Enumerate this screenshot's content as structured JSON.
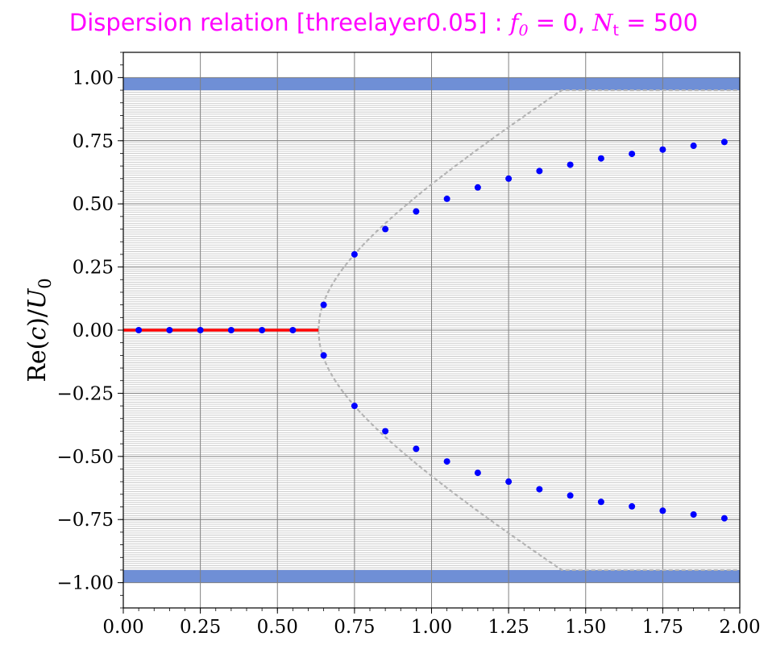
{
  "title": {
    "prefix": "Dispersion relation [threelayer0.05] : ",
    "f0_symbol": "f",
    "f0_sub": "0",
    "f0_eq": " = 0, ",
    "nt_symbol": "N",
    "nt_sub": "t",
    "nt_eq": " = 500"
  },
  "colors": {
    "title": "#ff00ff",
    "continuum_lines": "#c8c8c8",
    "boundary_bands": "#6f8fd6",
    "unstable_branch": "#ff0000",
    "sample_points": "#0000ff",
    "analytic_curve": "#b4b4b4"
  },
  "chart_data": {
    "type": "scatter",
    "ylabel": {
      "prefix": "Re(",
      "var": "c",
      "mid": ")/",
      "u": "U",
      "sub": "0"
    },
    "xlabel": "",
    "xlim": [
      0.0,
      2.0
    ],
    "ylim": [
      -1.1,
      1.1
    ],
    "grid": true,
    "x_ticks": [
      "0.00",
      "0.25",
      "0.50",
      "0.75",
      "1.00",
      "1.25",
      "1.50",
      "1.75",
      "2.00"
    ],
    "y_ticks": [
      "1.00",
      "0.75",
      "0.50",
      "0.25",
      "0.00",
      "−0.25",
      "−0.50",
      "−0.75",
      "−1.00"
    ],
    "continuum_band": [
      -0.95,
      0.95
    ],
    "boundary_bands": [
      [
        0.95,
        1.0
      ],
      [
        -1.0,
        -0.95
      ]
    ],
    "red_branch": {
      "x": [
        0.0,
        0.633
      ],
      "y": 0.0
    },
    "analytic_cutoff_k": 0.633,
    "points_upper": {
      "x": [
        0.65,
        0.75,
        0.85,
        0.95,
        1.05,
        1.15,
        1.25,
        1.35,
        1.45,
        1.55,
        1.65,
        1.75,
        1.85,
        1.95
      ],
      "y": [
        0.1,
        0.3,
        0.4,
        0.47,
        0.52,
        0.565,
        0.6,
        0.63,
        0.655,
        0.68,
        0.698,
        0.715,
        0.73,
        0.745
      ]
    },
    "points_lower": {
      "x": [
        0.65,
        0.75,
        0.85,
        0.95,
        1.05,
        1.15,
        1.25,
        1.35,
        1.45,
        1.55,
        1.65,
        1.75,
        1.85,
        1.95
      ],
      "y": [
        -0.1,
        -0.3,
        -0.4,
        -0.47,
        -0.52,
        -0.565,
        -0.6,
        -0.63,
        -0.655,
        -0.68,
        -0.698,
        -0.715,
        -0.73,
        -0.745
      ]
    },
    "points_zero": {
      "x": [
        0.05,
        0.15,
        0.25,
        0.35,
        0.45,
        0.55
      ],
      "y": [
        0,
        0,
        0,
        0,
        0,
        0
      ]
    }
  }
}
